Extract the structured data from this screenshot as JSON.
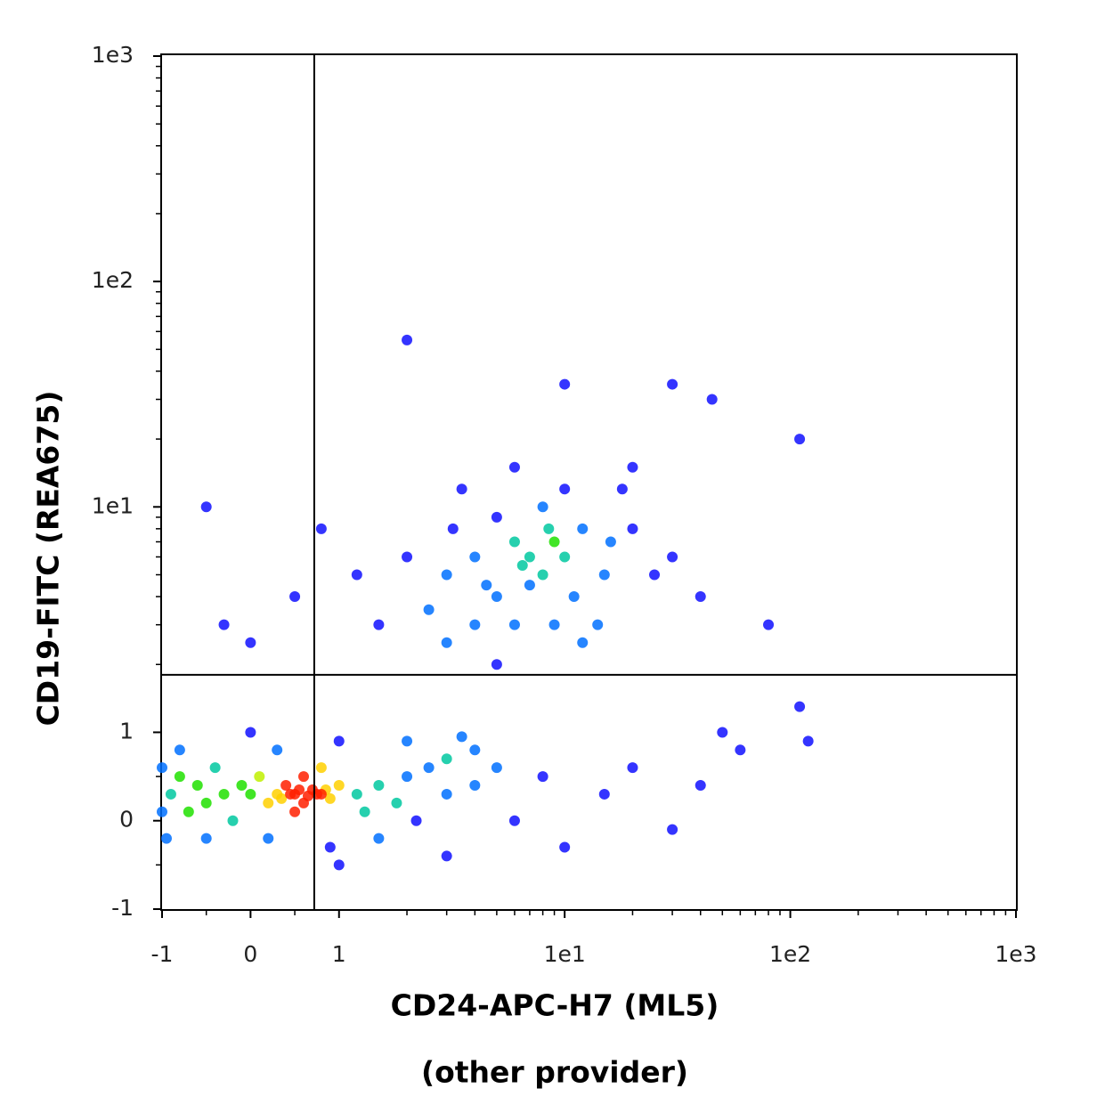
{
  "chart_data": {
    "type": "scatter",
    "xlabel": "CD24-APC-H7 (ML5)",
    "subcaption": "(other provider)",
    "ylabel": "CD19-FITC (REA675)",
    "xscale": "biexponential",
    "yscale": "biexponential",
    "xlim": [
      -1,
      1000
    ],
    "ylim": [
      -1,
      1000
    ],
    "xticks": [
      -1,
      0,
      1,
      {
        "value": 10,
        "label": "1e1"
      },
      {
        "value": 100,
        "label": "1e2"
      },
      {
        "value": 1000,
        "label": "1e3"
      }
    ],
    "yticks": [
      -1,
      0,
      1,
      {
        "value": 10,
        "label": "1e1"
      },
      {
        "value": 100,
        "label": "1e2"
      },
      {
        "value": 1000,
        "label": "1e3"
      }
    ],
    "xminorticks": [
      -0.5,
      0.5,
      2,
      3,
      4,
      5,
      6,
      7,
      8,
      9,
      20,
      30,
      40,
      50,
      60,
      70,
      80,
      90,
      200,
      300,
      400,
      500,
      600,
      700,
      800,
      900
    ],
    "yminorticks": [
      -0.5,
      0.5,
      2,
      3,
      4,
      5,
      6,
      7,
      8,
      9,
      20,
      30,
      40,
      50,
      60,
      70,
      80,
      90,
      200,
      300,
      400,
      500,
      600,
      700,
      800,
      900
    ],
    "gates": {
      "x": 0.72,
      "y": 1.8
    },
    "colormap": [
      "#1010ff",
      "#0070ff",
      "#00c8a0",
      "#20e000",
      "#c0f000",
      "#ffd000",
      "#ff2000"
    ],
    "x": [
      -0.9,
      -0.8,
      -0.7,
      -0.6,
      -0.5,
      -0.4,
      -0.3,
      -0.2,
      -0.1,
      0,
      0.1,
      0.2,
      0.3,
      0.4,
      0.5,
      0.6,
      0.7,
      0.8,
      0.9,
      1.0,
      0.45,
      0.55,
      0.65,
      0.75,
      0.85,
      0.35,
      0.5,
      0.6,
      0.8,
      1.2,
      1.5,
      2,
      2.5,
      3,
      4,
      5,
      1.3,
      1.8,
      2.2,
      0.2,
      -0.5,
      0.9,
      1.5,
      3,
      4,
      -0.8,
      0.3,
      0.0,
      1.0,
      2.0,
      3.5,
      -1,
      -1,
      -0.95,
      3,
      4,
      5,
      6,
      8,
      10,
      12,
      15,
      6,
      4,
      3,
      8,
      5,
      10,
      20,
      25,
      2,
      2.5,
      7,
      9,
      14,
      18,
      1.5,
      1.2,
      3.5,
      6,
      20,
      30,
      40,
      12,
      5,
      16,
      9,
      7,
      11,
      4.5,
      6.5,
      8.5,
      3.2,
      -0.3,
      0,
      0.5,
      -0.5,
      0.8,
      2,
      10,
      30,
      45,
      110,
      80,
      110,
      120,
      60,
      8,
      15,
      20,
      6,
      30,
      10,
      3,
      40,
      50,
      1
    ],
    "y": [
      0.3,
      0.5,
      0.1,
      0.4,
      0.2,
      0.6,
      0.3,
      0.0,
      0.4,
      0.3,
      0.5,
      0.2,
      0.3,
      0.4,
      0.3,
      0.2,
      0.35,
      0.3,
      0.25,
      0.4,
      0.3,
      0.35,
      0.28,
      0.3,
      0.35,
      0.25,
      0.1,
      0.5,
      0.6,
      0.3,
      0.4,
      0.5,
      0.6,
      0.7,
      0.8,
      0.6,
      0.1,
      0.2,
      0.0,
      -0.2,
      -0.2,
      -0.3,
      -0.2,
      0.3,
      0.4,
      0.8,
      0.8,
      1.0,
      0.9,
      0.9,
      0.95,
      0.6,
      0.1,
      -0.2,
      5,
      6,
      4,
      7,
      5,
      6,
      8,
      5,
      3,
      3,
      2.5,
      10,
      9,
      12,
      8,
      5,
      6,
      3.5,
      4.5,
      3,
      3,
      12,
      3,
      5,
      12,
      15,
      15,
      6,
      4,
      2.5,
      2,
      7,
      7,
      6,
      4,
      4.5,
      5.5,
      8,
      8,
      3,
      2.5,
      4,
      10,
      8,
      55,
      35,
      35,
      30,
      20,
      3,
      1.3,
      0.9,
      0.8,
      0.5,
      0.3,
      0.6,
      0,
      -0.1,
      -0.3,
      -0.4,
      0.4,
      1.0,
      -0.5
    ]
  }
}
